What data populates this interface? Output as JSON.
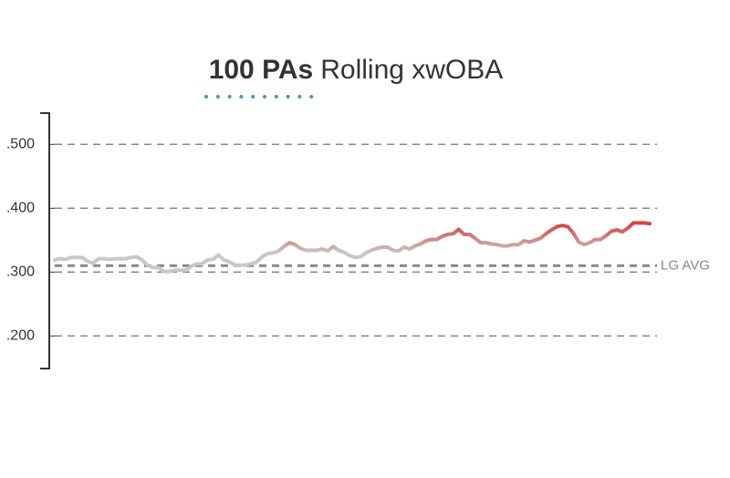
{
  "chart_data": {
    "type": "line",
    "title_selector": "100 PAs",
    "title": "Rolling xwOBA",
    "values": [
      0.319,
      0.321,
      0.32,
      0.323,
      0.323,
      0.323,
      0.317,
      0.314,
      0.321,
      0.321,
      0.32,
      0.321,
      0.321,
      0.321,
      0.323,
      0.324,
      0.319,
      0.311,
      0.307,
      0.307,
      0.301,
      0.301,
      0.303,
      0.303,
      0.303,
      0.309,
      0.313,
      0.313,
      0.319,
      0.32,
      0.327,
      0.319,
      0.316,
      0.311,
      0.311,
      0.311,
      0.313,
      0.316,
      0.324,
      0.329,
      0.33,
      0.333,
      0.34,
      0.346,
      0.343,
      0.337,
      0.334,
      0.334,
      0.334,
      0.336,
      0.333,
      0.34,
      0.334,
      0.331,
      0.326,
      0.323,
      0.324,
      0.33,
      0.334,
      0.337,
      0.339,
      0.339,
      0.334,
      0.333,
      0.339,
      0.336,
      0.341,
      0.344,
      0.349,
      0.351,
      0.351,
      0.356,
      0.359,
      0.36,
      0.367,
      0.359,
      0.359,
      0.353,
      0.346,
      0.346,
      0.344,
      0.343,
      0.341,
      0.341,
      0.343,
      0.343,
      0.349,
      0.347,
      0.35,
      0.353,
      0.36,
      0.366,
      0.371,
      0.373,
      0.371,
      0.361,
      0.347,
      0.343,
      0.346,
      0.351,
      0.351,
      0.357,
      0.364,
      0.366,
      0.363,
      0.369,
      0.377,
      0.377,
      0.377,
      0.376
    ],
    "color_scale": [
      {
        "value": 0.33,
        "color": "#c8c8c8"
      },
      {
        "value": 0.375,
        "color": "#d64541"
      }
    ],
    "ylim": [
      0.149,
      0.549
    ],
    "yticks": [
      {
        "value": 0.5,
        "label": ".500"
      },
      {
        "value": 0.4,
        "label": ".400"
      },
      {
        "value": 0.3,
        "label": ".300"
      },
      {
        "value": 0.2,
        "label": ".200"
      }
    ],
    "reference_line": {
      "value": 0.31,
      "label": "LG AVG"
    },
    "grid": true
  }
}
